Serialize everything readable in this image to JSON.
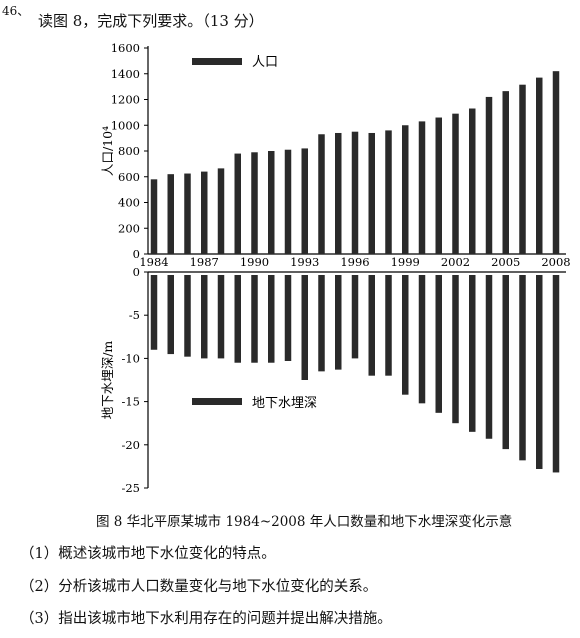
{
  "question": {
    "number": "46、",
    "heading": "读图 8，完成下列要求。（13 分）",
    "caption": "图 8  华北平原某城市 1984~2008 年人口数量和地下水埋深变化示意",
    "items": [
      "（1）概述该城市地下水位变化的特点。",
      "（2）分析该城市人口数量变化与地下水位变化的关系。",
      "（3）指出该城市地下水利用存在的问题并提出解决措施。"
    ]
  },
  "chart_data": [
    {
      "type": "bar",
      "ylabel": "人口/10⁴",
      "legend": "人口",
      "ylim": [
        0,
        1600
      ],
      "yticks": [
        "0",
        "200",
        "400",
        "600",
        "800",
        "1000",
        "1200",
        "1400",
        "1600"
      ],
      "x": [
        1984,
        1985,
        1986,
        1987,
        1988,
        1989,
        1990,
        1991,
        1992,
        1993,
        1994,
        1995,
        1996,
        1997,
        1998,
        1999,
        2000,
        2001,
        2002,
        2003,
        2004,
        2005,
        2006,
        2007,
        2008
      ],
      "xticks": [
        "1984",
        "1987",
        "1990",
        "1993",
        "1996",
        "1999",
        "2002",
        "2005",
        "2008"
      ],
      "values": [
        580,
        620,
        625,
        640,
        665,
        780,
        790,
        800,
        810,
        820,
        930,
        940,
        950,
        940,
        960,
        1000,
        1030,
        1060,
        1090,
        1130,
        1220,
        1265,
        1315,
        1370,
        1420
      ]
    },
    {
      "type": "bar",
      "ylabel": "地下水埋深/m",
      "legend": "地下水埋深",
      "ylim": [
        -25,
        0
      ],
      "yticks": [
        "0",
        "-5",
        "-10",
        "-15",
        "-20",
        "-25"
      ],
      "x": [
        1984,
        1985,
        1986,
        1987,
        1988,
        1989,
        1990,
        1991,
        1992,
        1993,
        1994,
        1995,
        1996,
        1997,
        1998,
        1999,
        2000,
        2001,
        2002,
        2003,
        2004,
        2005,
        2006,
        2007,
        2008
      ],
      "values": [
        -9,
        -9.5,
        -9.8,
        -10,
        -10,
        -10.5,
        -10.5,
        -10.5,
        -10.3,
        -12.5,
        -11.5,
        -11.3,
        -10,
        -12,
        -12,
        -14.2,
        -15.2,
        -16.3,
        -17.5,
        -18.5,
        -19.3,
        -20.5,
        -21.8,
        -22.8,
        -23.2
      ]
    }
  ]
}
